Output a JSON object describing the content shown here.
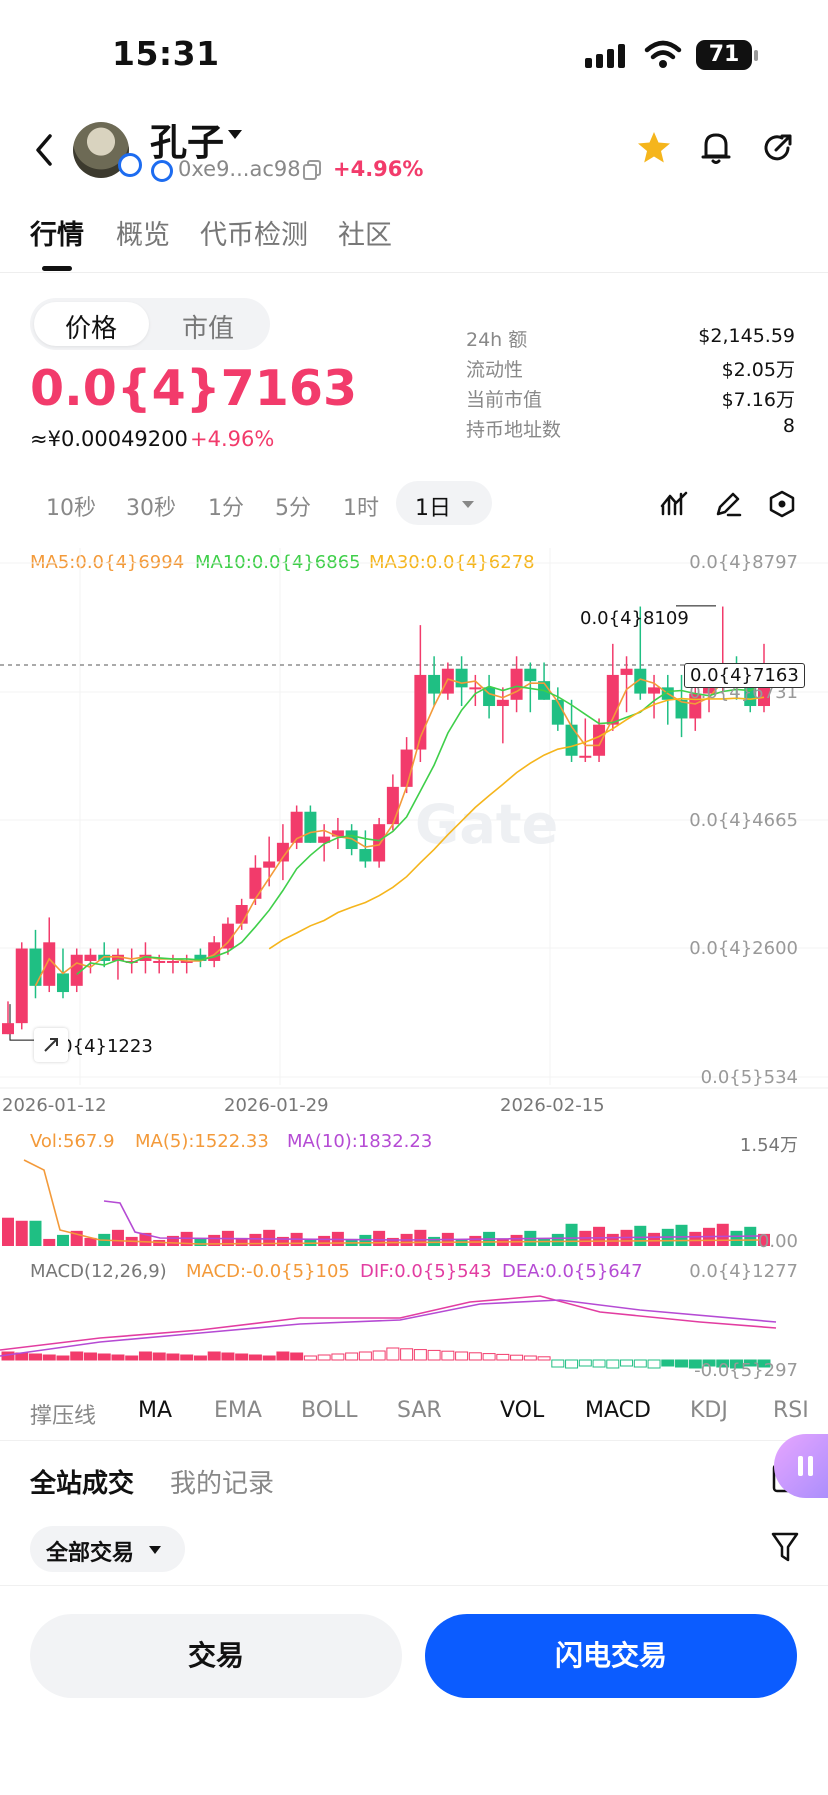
{
  "status_bar": {
    "time": "15:31",
    "battery": "71"
  },
  "header": {
    "coin_name": "孔子",
    "address": "0xe9...ac98",
    "change": "+4.96%"
  },
  "tabs": [
    "行情",
    "概览",
    "代币检测",
    "社区"
  ],
  "price_panel": {
    "toggle": [
      "价格",
      "市值"
    ],
    "price": "0.0{4}7163",
    "cny": "≈¥0.00049200",
    "cny_change": "+4.96%",
    "stats": [
      {
        "label": "24h  额",
        "value": "$2,145.59"
      },
      {
        "label": "流动性",
        "value": "$2.05万"
      },
      {
        "label": "当前市值",
        "value": "$7.16万"
      },
      {
        "label": "持币地址数",
        "value": "8"
      }
    ]
  },
  "intervals": [
    "10秒",
    "30秒",
    "1分",
    "5分",
    "1时",
    "1日"
  ],
  "chart_labels": {
    "ma5": "MA5:0.0{4}6994",
    "ma10": "MA10:0.0{4}6865",
    "ma30": "MA30:0.0{4}6278",
    "y_axis": [
      "0.0{4}8797",
      "0.0{4}6731",
      "0.0{4}4665",
      "0.0{4}2600",
      "0.0{5}534"
    ],
    "high_label": "0.0{4}8109",
    "low_label": "0.0{4}1223",
    "current_label": "0.0{4}7163",
    "dates": [
      "2026-01-12",
      "2026-01-29",
      "2026-02-15"
    ],
    "vol": "Vol:567.9",
    "vol_ma5": "MA(5):1522.33",
    "vol_ma10": "MA(10):1832.23",
    "vol_axis_top": "1.54万",
    "vol_axis_bottom": "0.00",
    "macd": "MACD(12,26,9)",
    "macd_val": "MACD:-0.0{5}105",
    "dif": "DIF:0.0{5}543",
    "dea": "DEA:0.0{5}647",
    "macd_axis_top": "0.0{4}1277",
    "macd_axis_bottom": "-0.0{5}297",
    "colors": {
      "up": "#f23b6b",
      "down": "#1fbf83",
      "ma5": "#f39a3a",
      "ma10": "#3fcf4a",
      "ma30": "#f5b51c",
      "dea": "#b54bd4",
      "dif": "#e23da1"
    }
  },
  "chart_data": {
    "type": "candlestick",
    "x": [
      "2026-01-12",
      "2026-01-29",
      "2026-02-15"
    ],
    "ohlc": [
      [
        1.223e-05,
        1.75e-05,
        1.223e-05,
        1.4e-05
      ],
      [
        1.4e-05,
        2.7e-05,
        1.3e-05,
        2.6e-05
      ],
      [
        2.6e-05,
        2.9e-05,
        1.8e-05,
        2e-05
      ],
      [
        2e-05,
        3.1e-05,
        1.9e-05,
        2.7e-05
      ],
      [
        2.2e-05,
        2.6e-05,
        1.8e-05,
        1.9e-05
      ],
      [
        2e-05,
        2.6e-05,
        1.9e-05,
        2.5e-05
      ],
      [
        2.4e-05,
        2.6e-05,
        2.2e-05,
        2.5e-05
      ],
      [
        2.5e-05,
        2.7e-05,
        2.3e-05,
        2.4e-05
      ],
      [
        2.4e-05,
        2.6e-05,
        2.1e-05,
        2.5e-05
      ],
      [
        2.4e-05,
        2.6e-05,
        2.2e-05,
        2.4e-05
      ],
      [
        2.4e-05,
        2.7e-05,
        2.2e-05,
        2.5e-05
      ],
      [
        2.4e-05,
        2.5e-05,
        2.2e-05,
        2.4e-05
      ],
      [
        2.4e-05,
        2.5e-05,
        2.2e-05,
        2.4e-05
      ],
      [
        2.4e-05,
        2.5e-05,
        2.2e-05,
        2.4e-05
      ],
      [
        2.5e-05,
        2.6e-05,
        2.3e-05,
        2.4e-05
      ],
      [
        2.4e-05,
        2.8e-05,
        2.3e-05,
        2.7e-05
      ],
      [
        2.6e-05,
        3.1e-05,
        2.5e-05,
        3e-05
      ],
      [
        3e-05,
        3.4e-05,
        2.9e-05,
        3.3e-05
      ],
      [
        3.4e-05,
        4.1e-05,
        3.3e-05,
        3.9e-05
      ],
      [
        3.9e-05,
        4.4e-05,
        3.6e-05,
        4e-05
      ],
      [
        4e-05,
        4.6e-05,
        3.7e-05,
        4.3e-05
      ],
      [
        4.3e-05,
        4.9e-05,
        4.2e-05,
        4.8e-05
      ],
      [
        4.8e-05,
        4.9e-05,
        4.3e-05,
        4.3e-05
      ],
      [
        4.3e-05,
        4.6e-05,
        4e-05,
        4.4e-05
      ],
      [
        4.4e-05,
        4.7e-05,
        4.2e-05,
        4.5e-05
      ],
      [
        4.5e-05,
        4.6e-05,
        4.1e-05,
        4.2e-05
      ],
      [
        4.2e-05,
        4.5e-05,
        3.9e-05,
        4e-05
      ],
      [
        4e-05,
        4.7e-05,
        3.9e-05,
        4.6e-05
      ],
      [
        4.6e-05,
        5.4e-05,
        4.5e-05,
        5.2e-05
      ],
      [
        5.2e-05,
        6e-05,
        5.1e-05,
        5.8e-05
      ],
      [
        5.8e-05,
        7.8e-05,
        5.6e-05,
        7e-05
      ],
      [
        7e-05,
        7.3e-05,
        6.5e-05,
        6.7e-05
      ],
      [
        6.7e-05,
        7.2e-05,
        6.6e-05,
        7.1e-05
      ],
      [
        7.1e-05,
        7.3e-05,
        6.5e-05,
        6.8e-05
      ],
      [
        6.8e-05,
        7e-05,
        6.5e-05,
        6.8e-05
      ],
      [
        6.8e-05,
        7e-05,
        6.3e-05,
        6.5e-05
      ],
      [
        6.5e-05,
        6.8e-05,
        5.9e-05,
        6.6e-05
      ],
      [
        6.6e-05,
        7.3e-05,
        6.4e-05,
        7.1e-05
      ],
      [
        7.1e-05,
        7.2e-05,
        6.4e-05,
        6.9e-05
      ],
      [
        6.9e-05,
        7.2e-05,
        6.6e-05,
        6.6e-05
      ],
      [
        6.6e-05,
        6.8e-05,
        6.1e-05,
        6.2e-05
      ],
      [
        6.2e-05,
        6.6e-05,
        5.6e-05,
        5.7e-05
      ],
      [
        5.7e-05,
        6.3e-05,
        5.6e-05,
        5.7e-05
      ],
      [
        5.7e-05,
        6.3e-05,
        5.6e-05,
        6.2e-05
      ],
      [
        6.2e-05,
        7.5e-05,
        6.1e-05,
        7e-05
      ],
      [
        7e-05,
        7.3e-05,
        6.4e-05,
        7.1e-05
      ],
      [
        7.1e-05,
        8.1e-05,
        6.6e-05,
        6.7e-05
      ],
      [
        6.7e-05,
        7e-05,
        6.3e-05,
        6.8e-05
      ],
      [
        6.8e-05,
        7e-05,
        6.2e-05,
        6.6e-05
      ],
      [
        6.6e-05,
        7e-05,
        6e-05,
        6.3e-05
      ],
      [
        6.3e-05,
        6.8e-05,
        6.1e-05,
        6.7e-05
      ],
      [
        6.7e-05,
        7e-05,
        6.4e-05,
        6.9e-05
      ],
      [
        6.9e-05,
        8.1e-05,
        6.7e-05,
        7.1e-05
      ],
      [
        7.1e-05,
        7.3e-05,
        6.6e-05,
        7e-05
      ],
      [
        7e-05,
        7.1e-05,
        6.4e-05,
        6.5e-05
      ],
      [
        6.5e-05,
        7.5e-05,
        6.4e-05,
        7.1e-05
      ]
    ]
  }
}
